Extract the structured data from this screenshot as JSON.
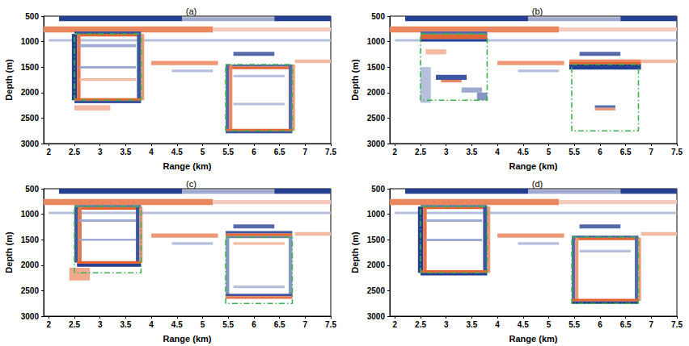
{
  "chart_data": [
    {
      "type": "heatmap",
      "title": "(a)",
      "x_label": "Range (km)",
      "y_label": "Depth (m)",
      "xlim": [
        1.9,
        7.5
      ],
      "ylim": [
        500,
        3000
      ],
      "xticks": [
        2,
        2.5,
        3,
        3.5,
        4,
        4.5,
        5,
        5.5,
        6,
        6.5,
        7,
        7.5
      ],
      "yticks": [
        500,
        1000,
        1500,
        2000,
        2500,
        3000
      ],
      "value_range": [
        -1,
        1
      ],
      "cells": [
        [
          2.2,
          4.6,
          500,
          600,
          -0.9
        ],
        [
          4.6,
          6.4,
          520,
          600,
          -0.4
        ],
        [
          6.4,
          7.5,
          500,
          600,
          -0.9
        ],
        [
          1.9,
          5.2,
          700,
          820,
          0.7
        ],
        [
          5.2,
          7.5,
          720,
          800,
          0.3
        ],
        [
          2.0,
          7.5,
          950,
          1000,
          -0.3
        ],
        [
          4.0,
          5.3,
          1380,
          1460,
          0.6
        ],
        [
          5.6,
          6.4,
          1200,
          1280,
          -0.7
        ],
        [
          6.8,
          7.5,
          1350,
          1420,
          0.4
        ],
        [
          4.4,
          5.2,
          1550,
          1600,
          -0.3
        ],
        [
          2.5,
          3.8,
          800,
          850,
          -0.8
        ],
        [
          2.5,
          3.8,
          850,
          900,
          0.9
        ],
        [
          2.45,
          2.55,
          850,
          2150,
          -0.9
        ],
        [
          2.55,
          2.62,
          850,
          2150,
          0.8
        ],
        [
          3.72,
          3.8,
          850,
          2150,
          -0.8
        ],
        [
          3.8,
          3.86,
          850,
          2150,
          0.6
        ],
        [
          2.5,
          3.8,
          2110,
          2160,
          0.9
        ],
        [
          2.5,
          3.8,
          2160,
          2210,
          -0.8
        ],
        [
          2.6,
          3.7,
          1050,
          1110,
          -0.4
        ],
        [
          2.6,
          3.7,
          1480,
          1530,
          -0.4
        ],
        [
          2.6,
          3.7,
          1720,
          1770,
          0.4
        ],
        [
          2.5,
          3.2,
          2250,
          2350,
          0.4
        ],
        [
          5.45,
          6.75,
          1450,
          1490,
          -0.7
        ],
        [
          5.45,
          6.75,
          1490,
          1540,
          0.9
        ],
        [
          5.45,
          5.52,
          1450,
          2750,
          -0.7
        ],
        [
          5.52,
          5.58,
          1450,
          2750,
          0.7
        ],
        [
          6.68,
          6.75,
          1450,
          2750,
          -0.7
        ],
        [
          6.75,
          6.8,
          1450,
          2750,
          0.6
        ],
        [
          5.45,
          6.75,
          2710,
          2760,
          0.9
        ],
        [
          5.45,
          6.75,
          2760,
          2800,
          -0.8
        ],
        [
          5.6,
          6.6,
          1650,
          1700,
          -0.3
        ],
        [
          5.6,
          6.6,
          2200,
          2250,
          -0.3
        ]
      ],
      "boxes": [
        [
          2.5,
          3.8,
          850,
          2150
        ],
        [
          5.45,
          6.75,
          1450,
          2750
        ]
      ],
      "color": "#3cb44b",
      "line_style": "dashdot"
    },
    {
      "type": "heatmap",
      "title": "(b)",
      "x_label": "Range (km)",
      "y_label": "Depth (m)",
      "xlim": [
        1.9,
        7.5
      ],
      "ylim": [
        500,
        3000
      ],
      "xticks": [
        2,
        2.5,
        3,
        3.5,
        4,
        4.5,
        5,
        5.5,
        6,
        6.5,
        7,
        7.5
      ],
      "yticks": [
        500,
        1000,
        1500,
        2000,
        2500,
        3000
      ],
      "value_range": [
        -1,
        1
      ],
      "cells": [
        [
          2.2,
          4.6,
          500,
          600,
          -0.9
        ],
        [
          4.6,
          6.4,
          520,
          600,
          -0.4
        ],
        [
          6.4,
          7.5,
          500,
          600,
          -0.9
        ],
        [
          1.9,
          5.2,
          700,
          820,
          0.7
        ],
        [
          5.2,
          7.5,
          720,
          800,
          0.3
        ],
        [
          2.0,
          7.5,
          950,
          1000,
          -0.3
        ],
        [
          4.0,
          5.3,
          1380,
          1460,
          0.6
        ],
        [
          5.6,
          6.4,
          1200,
          1280,
          -0.7
        ],
        [
          6.8,
          7.5,
          1350,
          1420,
          0.4
        ],
        [
          4.4,
          5.2,
          1550,
          1600,
          -0.3
        ],
        [
          2.5,
          3.8,
          800,
          860,
          -0.7
        ],
        [
          2.5,
          3.8,
          860,
          950,
          0.9
        ],
        [
          2.5,
          3.8,
          950,
          1000,
          -0.9
        ],
        [
          2.6,
          3.0,
          1150,
          1250,
          0.4
        ],
        [
          2.8,
          3.4,
          1650,
          1750,
          -0.8
        ],
        [
          2.9,
          3.3,
          1750,
          1800,
          0.7
        ],
        [
          3.3,
          3.7,
          1900,
          2000,
          -0.4
        ],
        [
          2.5,
          2.7,
          1500,
          2200,
          -0.3
        ],
        [
          3.6,
          3.8,
          2000,
          2150,
          -0.5
        ],
        [
          5.4,
          6.8,
          1350,
          1400,
          0.7
        ],
        [
          5.4,
          6.8,
          1400,
          1450,
          0.9
        ],
        [
          5.4,
          6.8,
          1450,
          1550,
          -0.9
        ],
        [
          5.9,
          6.3,
          2250,
          2300,
          -0.7
        ],
        [
          5.9,
          6.3,
          2300,
          2350,
          0.6
        ]
      ],
      "boxes": [
        [
          2.5,
          3.8,
          850,
          2150
        ],
        [
          5.45,
          6.75,
          1450,
          2750
        ]
      ],
      "color": "#3cb44b",
      "line_style": "dashdot"
    },
    {
      "type": "heatmap",
      "title": "(c)",
      "x_label": "Range (km)",
      "y_label": "Depth (m)",
      "xlim": [
        1.9,
        7.5
      ],
      "ylim": [
        500,
        3000
      ],
      "xticks": [
        2,
        2.5,
        3,
        3.5,
        4,
        4.5,
        5,
        5.5,
        6,
        6.5,
        7,
        7.5
      ],
      "yticks": [
        500,
        1000,
        1500,
        2000,
        2500,
        3000
      ],
      "value_range": [
        -1,
        1
      ],
      "cells": [
        [
          2.2,
          4.6,
          500,
          600,
          -0.9
        ],
        [
          4.6,
          6.4,
          520,
          600,
          -0.4
        ],
        [
          6.4,
          7.5,
          500,
          600,
          -0.9
        ],
        [
          1.9,
          5.2,
          700,
          820,
          0.7
        ],
        [
          5.2,
          7.5,
          720,
          800,
          0.3
        ],
        [
          2.0,
          7.5,
          950,
          1000,
          -0.3
        ],
        [
          4.0,
          5.3,
          1380,
          1460,
          0.6
        ],
        [
          5.6,
          6.4,
          1200,
          1280,
          -0.7
        ],
        [
          6.8,
          7.5,
          1350,
          1420,
          0.4
        ],
        [
          4.4,
          5.2,
          1550,
          1600,
          -0.3
        ],
        [
          2.5,
          3.8,
          820,
          860,
          -0.7
        ],
        [
          2.5,
          3.8,
          860,
          910,
          0.9
        ],
        [
          2.5,
          2.57,
          860,
          1950,
          -0.8
        ],
        [
          2.57,
          2.64,
          860,
          1950,
          0.8
        ],
        [
          3.7,
          3.77,
          860,
          1950,
          -0.8
        ],
        [
          3.77,
          3.83,
          860,
          1950,
          0.6
        ],
        [
          2.55,
          3.8,
          1920,
          1970,
          0.9
        ],
        [
          2.55,
          3.8,
          1970,
          2030,
          -0.9
        ],
        [
          2.4,
          2.8,
          2050,
          2300,
          0.5
        ],
        [
          2.6,
          3.7,
          1100,
          1150,
          -0.4
        ],
        [
          2.6,
          3.7,
          1480,
          1520,
          -0.4
        ],
        [
          5.45,
          6.75,
          1330,
          1380,
          -0.8
        ],
        [
          5.45,
          6.75,
          1380,
          1430,
          0.9
        ],
        [
          5.45,
          6.75,
          1430,
          1470,
          -0.6
        ],
        [
          5.45,
          5.52,
          1430,
          2600,
          -0.5
        ],
        [
          6.68,
          6.75,
          1430,
          2600,
          -0.5
        ],
        [
          5.45,
          6.75,
          2560,
          2610,
          -0.8
        ],
        [
          5.45,
          6.75,
          2610,
          2660,
          0.8
        ],
        [
          5.6,
          6.6,
          1550,
          1600,
          0.4
        ],
        [
          5.6,
          6.6,
          2400,
          2450,
          -0.3
        ]
      ],
      "boxes": [
        [
          2.5,
          3.8,
          850,
          2150
        ],
        [
          5.45,
          6.75,
          1450,
          2750
        ]
      ],
      "color": "#3cb44b",
      "line_style": "dashdot"
    },
    {
      "type": "heatmap",
      "title": "(d)",
      "x_label": "Range (km)",
      "y_label": "Depth (m)",
      "xlim": [
        1.9,
        7.5
      ],
      "ylim": [
        500,
        3000
      ],
      "xticks": [
        2,
        2.5,
        3,
        3.5,
        4,
        4.5,
        5,
        5.5,
        6,
        6.5,
        7,
        7.5
      ],
      "yticks": [
        500,
        1000,
        1500,
        2000,
        2500,
        3000
      ],
      "value_range": [
        -1,
        1
      ],
      "cells": [
        [
          2.2,
          4.6,
          500,
          600,
          -0.9
        ],
        [
          4.6,
          6.4,
          520,
          600,
          -0.4
        ],
        [
          6.4,
          7.5,
          500,
          600,
          -0.9
        ],
        [
          1.9,
          5.2,
          700,
          820,
          0.7
        ],
        [
          5.2,
          7.5,
          720,
          800,
          0.3
        ],
        [
          2.0,
          7.5,
          950,
          1000,
          -0.3
        ],
        [
          4.0,
          5.3,
          1380,
          1460,
          0.6
        ],
        [
          5.6,
          6.4,
          1200,
          1280,
          -0.7
        ],
        [
          6.8,
          7.5,
          1350,
          1420,
          0.4
        ],
        [
          4.4,
          5.2,
          1550,
          1600,
          -0.3
        ],
        [
          2.5,
          3.8,
          820,
          860,
          -0.7
        ],
        [
          2.5,
          3.8,
          860,
          900,
          0.9
        ],
        [
          2.45,
          2.55,
          850,
          2150,
          -0.9
        ],
        [
          2.55,
          2.62,
          850,
          2150,
          0.8
        ],
        [
          3.72,
          3.8,
          850,
          2150,
          -0.8
        ],
        [
          3.8,
          3.86,
          850,
          2150,
          0.6
        ],
        [
          2.5,
          3.8,
          2100,
          2150,
          0.9
        ],
        [
          2.5,
          3.8,
          2150,
          2200,
          -0.9
        ],
        [
          2.6,
          3.7,
          1100,
          1150,
          -0.4
        ],
        [
          2.6,
          3.7,
          1480,
          1530,
          -0.4
        ],
        [
          5.45,
          6.75,
          1420,
          1460,
          -0.8
        ],
        [
          5.45,
          6.75,
          1460,
          1510,
          0.9
        ],
        [
          5.45,
          5.52,
          1460,
          2700,
          -0.7
        ],
        [
          5.52,
          5.58,
          1460,
          2700,
          0.6
        ],
        [
          6.68,
          6.75,
          1460,
          2700,
          -0.7
        ],
        [
          6.75,
          6.8,
          1460,
          2700,
          0.6
        ],
        [
          5.45,
          6.75,
          2660,
          2710,
          0.9
        ],
        [
          5.45,
          6.75,
          2710,
          2760,
          -0.9
        ],
        [
          5.6,
          6.6,
          1700,
          1750,
          -0.3
        ]
      ],
      "boxes": [
        [
          2.5,
          3.8,
          850,
          2150
        ],
        [
          5.45,
          6.75,
          1450,
          2750
        ]
      ],
      "color": "#3cb44b",
      "line_style": "dashdot"
    }
  ]
}
